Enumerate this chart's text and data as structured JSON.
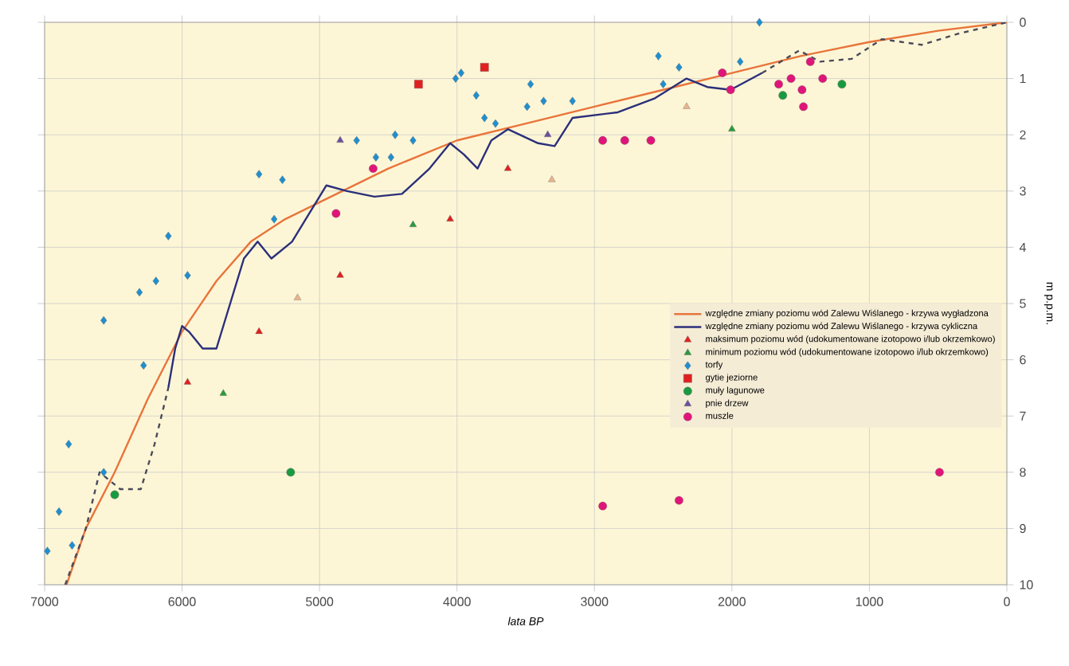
{
  "chart_data": {
    "type": "scatter",
    "xlabel": "lata BP",
    "ylabel": "m p.p.m.",
    "xlim": [
      7000,
      0
    ],
    "ylim": [
      10,
      0
    ],
    "xticks": [
      7000,
      6000,
      5000,
      4000,
      3000,
      2000,
      1000,
      0
    ],
    "yticks": [
      0,
      1,
      2,
      3,
      4,
      5,
      6,
      7,
      8,
      9,
      10
    ],
    "grid": true,
    "legend": "right",
    "series": [
      {
        "name": "względne zmiany poziomu wód Zalewu Wiślanego - krzywa wygładzona",
        "type": "line",
        "marker": "none",
        "color": "#e8743b",
        "x": [
          6840,
          6700,
          6490,
          6250,
          6000,
          5750,
          5500,
          5250,
          5000,
          4500,
          4000,
          3500,
          3000,
          2500,
          2000,
          1500,
          1000,
          500,
          0
        ],
        "values": [
          10,
          9.0,
          8.0,
          6.7,
          5.5,
          4.6,
          3.9,
          3.5,
          3.2,
          2.6,
          2.1,
          1.8,
          1.5,
          1.2,
          0.9,
          0.6,
          0.35,
          0.15,
          0
        ]
      },
      {
        "name": "względne zmiany poziomu wód Zalewu Wiślanego - krzywa cykliczna",
        "type": "line",
        "marker": "none",
        "color": "#2b2f7a",
        "x": [
          6100,
          6050,
          6000,
          5950,
          5850,
          5750,
          5650,
          5550,
          5450,
          5350,
          5200,
          5050,
          4950,
          4800,
          4600,
          4400,
          4200,
          4050,
          3950,
          3850,
          3750,
          3630,
          3410,
          3290,
          3160,
          2830,
          2560,
          2330,
          2180,
          2010,
          1780
        ],
        "values": [
          6.5,
          5.8,
          5.4,
          5.5,
          5.8,
          5.8,
          5.0,
          4.2,
          3.9,
          4.2,
          3.9,
          3.3,
          2.9,
          3.0,
          3.1,
          3.05,
          2.6,
          2.15,
          2.35,
          2.6,
          2.1,
          1.9,
          2.15,
          2.2,
          1.7,
          1.6,
          1.35,
          1.0,
          1.15,
          1.2,
          0.9
        ]
      },
      {
        "name": "maksimum poziomu wód (udokumentowane izotopowo i/lub okrzemkowo)",
        "type": "scatter",
        "marker": "triangle",
        "color": "#e02020",
        "x": [
          5960,
          5440,
          4850,
          4050,
          3630
        ],
        "values": [
          6.4,
          5.5,
          4.5,
          3.5,
          2.6
        ]
      },
      {
        "name": "minimum poziomu wód (udokumentowane izotopowo i/lub okrzemkowo)",
        "type": "scatter",
        "marker": "triangle",
        "color": "#2a9a40",
        "x": [
          5700,
          4320,
          2000
        ],
        "values": [
          6.6,
          3.6,
          1.9
        ]
      },
      {
        "name": "torfy",
        "type": "scatter",
        "marker": "diamond",
        "color": "#1e8fd0",
        "x": [
          6980,
          6800,
          6895,
          6825,
          6570,
          6570,
          6310,
          6190,
          6100,
          6280,
          5960,
          5440,
          5270,
          5330,
          4730,
          4590,
          4480,
          4450,
          4320,
          4010,
          3970,
          3860,
          3800,
          3720,
          3465,
          3490,
          3370,
          3160,
          2535,
          2385,
          2500,
          1940,
          1800
        ],
        "values": [
          9.4,
          9.3,
          8.7,
          7.5,
          8.0,
          5.3,
          4.8,
          4.6,
          3.8,
          6.1,
          4.5,
          2.7,
          2.8,
          3.5,
          2.1,
          2.4,
          2.4,
          2.0,
          2.1,
          1.0,
          0.9,
          1.3,
          1.7,
          1.8,
          1.1,
          1.5,
          1.4,
          1.4,
          0.6,
          0.8,
          1.1,
          0.7,
          0.0
        ]
      },
      {
        "name": "gytie jeziorne",
        "type": "scatter",
        "marker": "square",
        "color": "#e02020",
        "x": [
          4280,
          3800
        ],
        "values": [
          1.1,
          0.8
        ]
      },
      {
        "name": "muły lagunowe",
        "type": "scatter",
        "marker": "circle",
        "color": "#1a9a40",
        "x": [
          6490,
          5210,
          1200,
          1630
        ],
        "values": [
          8.4,
          8.0,
          1.1,
          1.3
        ]
      },
      {
        "name": "pnie drzew",
        "type": "scatter",
        "marker": "triangle",
        "color": "#6a4fa0",
        "x": [
          4850,
          3340
        ],
        "values": [
          2.1,
          2.0
        ]
      },
      {
        "name": "muszle",
        "type": "scatter",
        "marker": "circle",
        "color": "#e0157a",
        "x": [
          4610,
          4880,
          2940,
          2780,
          2590,
          2070,
          2010,
          1660,
          1570,
          1490,
          1430,
          1340,
          1480,
          2940,
          2385,
          490
        ],
        "values": [
          2.6,
          3.4,
          2.1,
          2.1,
          2.1,
          0.9,
          1.2,
          1.1,
          1.0,
          1.2,
          0.7,
          1.0,
          1.5,
          8.6,
          8.5,
          8.0
        ]
      },
      {
        "type": "line",
        "marker": "none",
        "line_style": "dashed",
        "color": "#4a4a5a",
        "x": [
          6850,
          6700,
          6600,
          6450,
          6300,
          6200,
          6100,
          null,
          1780,
          1510,
          1360,
          1130,
          910,
          620,
          350,
          0
        ],
        "values": [
          10,
          9.0,
          8.0,
          8.3,
          8.3,
          7.5,
          6.5,
          null,
          0.9,
          0.5,
          0.7,
          0.65,
          0.3,
          0.4,
          0.2,
          0
        ]
      },
      {
        "type": "scatter",
        "marker": "triangle",
        "color": "#e9b48f",
        "x": [
          5160,
          3310,
          2330
        ],
        "values": [
          4.9,
          2.8,
          1.5
        ]
      }
    ]
  }
}
